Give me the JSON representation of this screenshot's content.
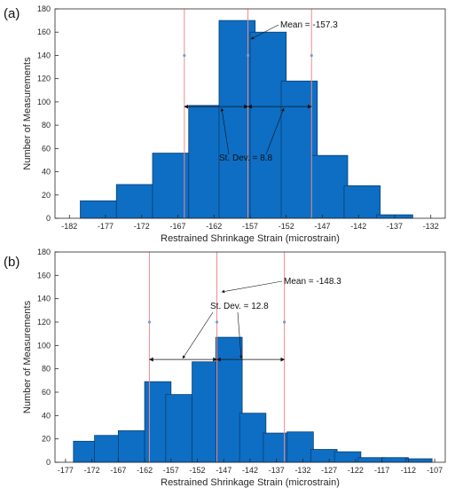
{
  "chart_data": [
    {
      "type": "bar",
      "panel_label": "(a)",
      "xlabel": "Restrained Shrinkage Strain (microstrain)",
      "ylabel": "Number of Measurements",
      "x_ticks": [
        "-182",
        "-177",
        "-172",
        "-167",
        "-162",
        "-157",
        "-152",
        "-147",
        "-142",
        "-137",
        "-132"
      ],
      "xlim": [
        -184,
        -130
      ],
      "ylim": [
        0,
        180
      ],
      "y_ticks": [
        "0",
        "20",
        "40",
        "60",
        "80",
        "100",
        "120",
        "140",
        "160",
        "180"
      ],
      "bin_width": 5,
      "bins": [
        {
          "left": -180.5,
          "value": 15
        },
        {
          "left": -175.5,
          "value": 29
        },
        {
          "left": -170.5,
          "value": 56
        },
        {
          "left": -165.5,
          "value": 97
        },
        {
          "left": -161.3,
          "value": 170
        },
        {
          "left": -157.0,
          "value": 160
        },
        {
          "left": -152.7,
          "value": 118
        },
        {
          "left": -148.5,
          "value": 54
        },
        {
          "left": -144.0,
          "value": 28
        },
        {
          "left": -139.5,
          "value": 3
        }
      ],
      "mean": -157.3,
      "std": 8.8,
      "mean_text": "Mean = -157.3",
      "std_text": "St. Dev. = 8.8",
      "marker_y": 140,
      "arrow_y": 96,
      "grid": false
    },
    {
      "type": "bar",
      "panel_label": "(b)",
      "xlabel": "Restrained Shrinkage Strain (microstrain)",
      "ylabel": "Number of Measurements",
      "x_ticks": [
        "-177",
        "-172",
        "-167",
        "-162",
        "-157",
        "-152",
        "-147",
        "-142",
        "-137",
        "-132",
        "-127",
        "-122",
        "-117",
        "-112",
        "-107"
      ],
      "xlim": [
        -179,
        -105
      ],
      "ylim": [
        0,
        180
      ],
      "y_ticks": [
        "0",
        "20",
        "40",
        "60",
        "80",
        "100",
        "120",
        "140",
        "160",
        "180"
      ],
      "bin_width": 5,
      "bins": [
        {
          "left": -175.5,
          "value": 18
        },
        {
          "left": -171.5,
          "value": 23
        },
        {
          "left": -167.0,
          "value": 27
        },
        {
          "left": -162.0,
          "value": 69
        },
        {
          "left": -158.0,
          "value": 58
        },
        {
          "left": -153.0,
          "value": 86
        },
        {
          "left": -148.5,
          "value": 107
        },
        {
          "left": -144.0,
          "value": 42
        },
        {
          "left": -139.5,
          "value": 25
        },
        {
          "left": -135.0,
          "value": 26
        },
        {
          "left": -130.5,
          "value": 11
        },
        {
          "left": -126.0,
          "value": 9
        },
        {
          "left": -121.5,
          "value": 4
        },
        {
          "left": -117.0,
          "value": 4
        },
        {
          "left": -112.5,
          "value": 3
        }
      ],
      "mean": -148.3,
      "std": 12.8,
      "mean_text": "Mean = -148.3",
      "std_text": "St. Dev. = 12.8",
      "marker_y": 120,
      "arrow_y": 88,
      "grid": false
    }
  ],
  "colors": {
    "bar_fill": "#0d6ec4",
    "bar_edge": "#0a3f70",
    "mean_line": "#f08c8c",
    "marker": "#7a9ec8",
    "axis": "#262626"
  }
}
